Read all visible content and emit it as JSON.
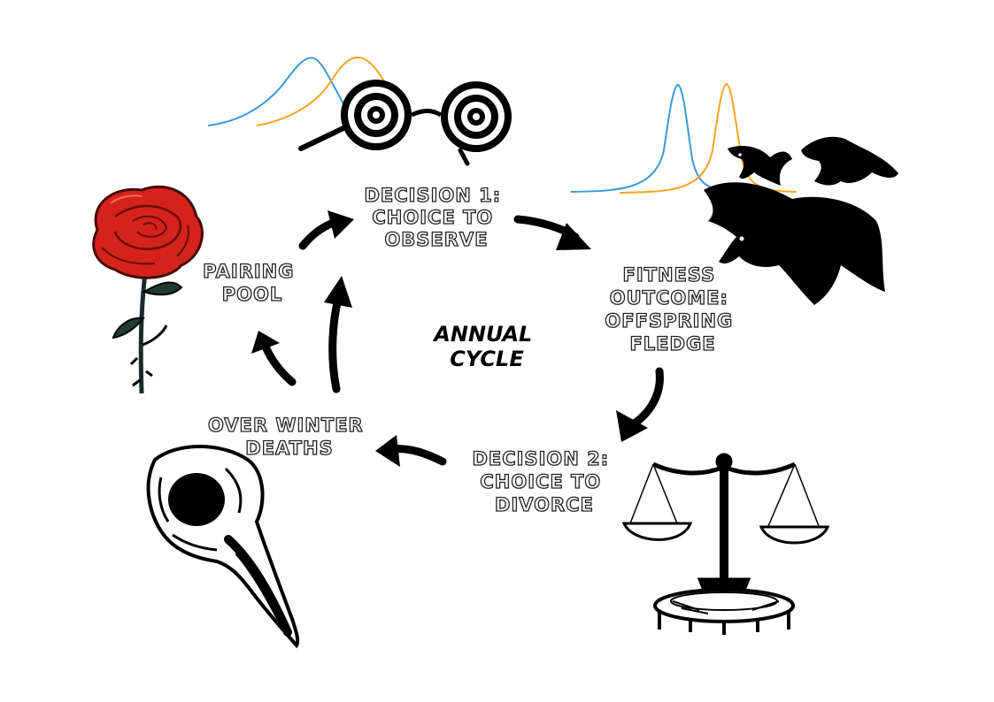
{
  "labels": {
    "decision1": [
      "DECISION 1:",
      "CHOICE TO",
      "OBSERVE"
    ],
    "fitness": [
      "FITNESS",
      "OUTCOME:",
      "OFFSPRING",
      "FLEDGE"
    ],
    "decision2": [
      "DECISION 2:",
      "CHOICE TO",
      "DIVORCE"
    ],
    "winter": [
      "OVER WINTER",
      "DEATHS"
    ],
    "pairing": [
      "PAIRING",
      "POOL"
    ],
    "center": [
      "ANNUAL",
      "CYCLE"
    ]
  },
  "colors": {
    "curve_blue": "#3a9ad9",
    "curve_orange": "#f5a623",
    "rose_red": "#d4231c",
    "ink": "#000000"
  },
  "icons": [
    "glasses-icon",
    "ravens-icon",
    "rose-icon",
    "bird-skull-icon",
    "scales-icon"
  ]
}
